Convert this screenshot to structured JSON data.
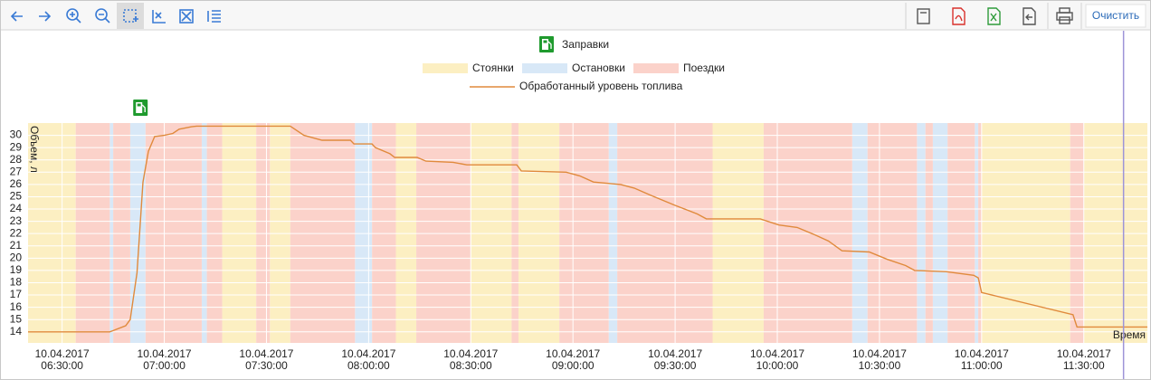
{
  "toolbar": {
    "clear_button": "Очистить"
  },
  "chart_data": {
    "type": "line",
    "refuel_legend": "Заправки",
    "refuels": [
      "06:53:00"
    ],
    "ylabel": "Объем, л",
    "xlabel": "Время",
    "xlim": [
      "06:20:00",
      "11:48:40"
    ],
    "ylim": [
      13.1,
      31
    ],
    "yticks": [
      14,
      15,
      16,
      17,
      18,
      19,
      20,
      21,
      22,
      23,
      24,
      25,
      26,
      27,
      28,
      29,
      30
    ],
    "xticks": [
      "10.04.2017 06:30:00",
      "10.04.2017 07:00:00",
      "10.04.2017 07:30:00",
      "10.04.2017 08:00:00",
      "10.04.2017 08:30:00",
      "10.04.2017 09:00:00",
      "10.04.2017 09:30:00",
      "10.04.2017 10:00:00",
      "10.04.2017 10:30:00",
      "10.04.2017 11:00:00",
      "10.04.2017 11:30:00"
    ],
    "grid": true,
    "cursor_x": "11:41:40",
    "bands": [
      {
        "name": "Стоянки",
        "color": "#fcefc2",
        "intervals": [
          [
            "06:20:00",
            "06:34:00"
          ],
          [
            "07:17:00",
            "07:27:00"
          ],
          [
            "07:31:00",
            "07:37:00"
          ],
          [
            "08:08:00",
            "08:14:00"
          ],
          [
            "08:30:00",
            "08:42:00"
          ],
          [
            "08:44:00",
            "08:56:00"
          ],
          [
            "09:41:00",
            "09:56:00"
          ],
          [
            "11:00:00",
            "11:26:00"
          ],
          [
            "11:30:00",
            "11:48:40"
          ]
        ]
      },
      {
        "name": "Остановки",
        "color": "#d8e8f7",
        "intervals": [
          [
            "06:44:00",
            "06:45:00"
          ],
          [
            "06:50:00",
            "06:54:30"
          ],
          [
            "07:11:00",
            "07:12:30"
          ],
          [
            "07:56:00",
            "08:01:00"
          ],
          [
            "09:10:30",
            "09:13:00"
          ],
          [
            "10:22:00",
            "10:26:30"
          ],
          [
            "10:41:00",
            "10:43:30"
          ],
          [
            "10:45:40",
            "10:50:00"
          ],
          [
            "10:58:00",
            "10:59:00"
          ]
        ]
      },
      {
        "name": "Поездки",
        "color": "#fbd2ca",
        "intervals": [
          [
            "06:34:00",
            "06:44:00"
          ],
          [
            "06:45:00",
            "06:50:00"
          ],
          [
            "06:54:30",
            "07:11:00"
          ],
          [
            "07:12:30",
            "07:17:00"
          ],
          [
            "07:27:00",
            "07:31:00"
          ],
          [
            "07:37:00",
            "07:56:00"
          ],
          [
            "08:01:00",
            "08:08:00"
          ],
          [
            "08:14:00",
            "08:30:00"
          ],
          [
            "08:42:00",
            "08:44:00"
          ],
          [
            "08:56:00",
            "09:10:30"
          ],
          [
            "09:13:00",
            "09:41:00"
          ],
          [
            "09:56:00",
            "10:22:00"
          ],
          [
            "10:26:30",
            "10:41:00"
          ],
          [
            "10:43:30",
            "10:45:40"
          ],
          [
            "10:50:00",
            "10:58:00"
          ],
          [
            "10:59:00",
            "11:00:00"
          ],
          [
            "11:26:00",
            "11:30:00"
          ]
        ]
      }
    ],
    "x": [
      "06:20:00",
      "06:44:00",
      "06:45:00",
      "06:48:40",
      "06:50:00",
      "06:52:00",
      "06:53:45",
      "06:55:20",
      "06:57:10",
      "07:00:00",
      "07:02:30",
      "07:04:20",
      "07:08:00",
      "07:09:30",
      "07:37:00",
      "07:41:00",
      "07:46:20",
      "07:54:40",
      "07:55:40",
      "08:01:00",
      "08:02:00",
      "08:06:15",
      "08:07:40",
      "08:14:15",
      "08:16:50",
      "08:24:50",
      "08:28:50",
      "08:43:30",
      "08:44:50",
      "08:58:00",
      "09:02:00",
      "09:06:00",
      "09:14:00",
      "09:18:00",
      "09:23:00",
      "09:30:00",
      "09:36:30",
      "09:39:10",
      "09:55:00",
      "10:00:30",
      "10:05:50",
      "10:11:00",
      "10:15:00",
      "10:19:00",
      "10:27:00",
      "10:32:20",
      "10:37:40",
      "10:40:20",
      "10:49:40",
      "10:57:40",
      "10:59:00",
      "11:00:00",
      "11:26:50",
      "11:28:00",
      "11:48:40"
    ],
    "series": [
      {
        "name": "Обработанный уровень топлива",
        "color": "#e08a3c",
        "values": [
          14.0,
          14.0,
          14.1,
          14.5,
          15.0,
          18.8,
          26.2,
          28.7,
          29.9,
          30.0,
          30.15,
          30.5,
          30.7,
          30.75,
          30.75,
          30.0,
          29.6,
          29.6,
          29.3,
          29.3,
          29.0,
          28.5,
          28.2,
          28.2,
          27.9,
          27.8,
          27.6,
          27.6,
          27.1,
          27.0,
          26.7,
          26.2,
          26.0,
          25.7,
          25.1,
          24.3,
          23.6,
          23.2,
          23.2,
          22.7,
          22.5,
          21.9,
          21.4,
          20.6,
          20.5,
          19.9,
          19.4,
          19.0,
          18.9,
          18.6,
          18.4,
          17.2,
          15.4,
          14.4,
          14.4
        ]
      }
    ]
  }
}
